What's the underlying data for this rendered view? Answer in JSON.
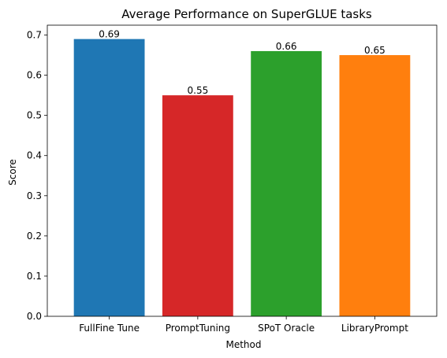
{
  "chart_data": {
    "type": "bar",
    "title": "Average Performance on SuperGLUE tasks",
    "xlabel": "Method",
    "ylabel": "Score",
    "categories": [
      "FullFine Tune",
      "PromptTuning",
      "SPoT Oracle",
      "LibraryPrompt"
    ],
    "values": [
      0.69,
      0.55,
      0.66,
      0.65
    ],
    "value_labels": [
      "0.69",
      "0.55",
      "0.66",
      "0.65"
    ],
    "colors": [
      "#1f77b4",
      "#d62728",
      "#2ca02c",
      "#ff7f0e"
    ],
    "ylim": [
      0,
      0.7245
    ],
    "yticks": [
      0.0,
      0.1,
      0.2,
      0.3,
      0.4,
      0.5,
      0.6,
      0.7
    ],
    "ytick_labels": [
      "0.0",
      "0.1",
      "0.2",
      "0.3",
      "0.4",
      "0.5",
      "0.6",
      "0.7"
    ],
    "grid": false,
    "legend": false
  }
}
